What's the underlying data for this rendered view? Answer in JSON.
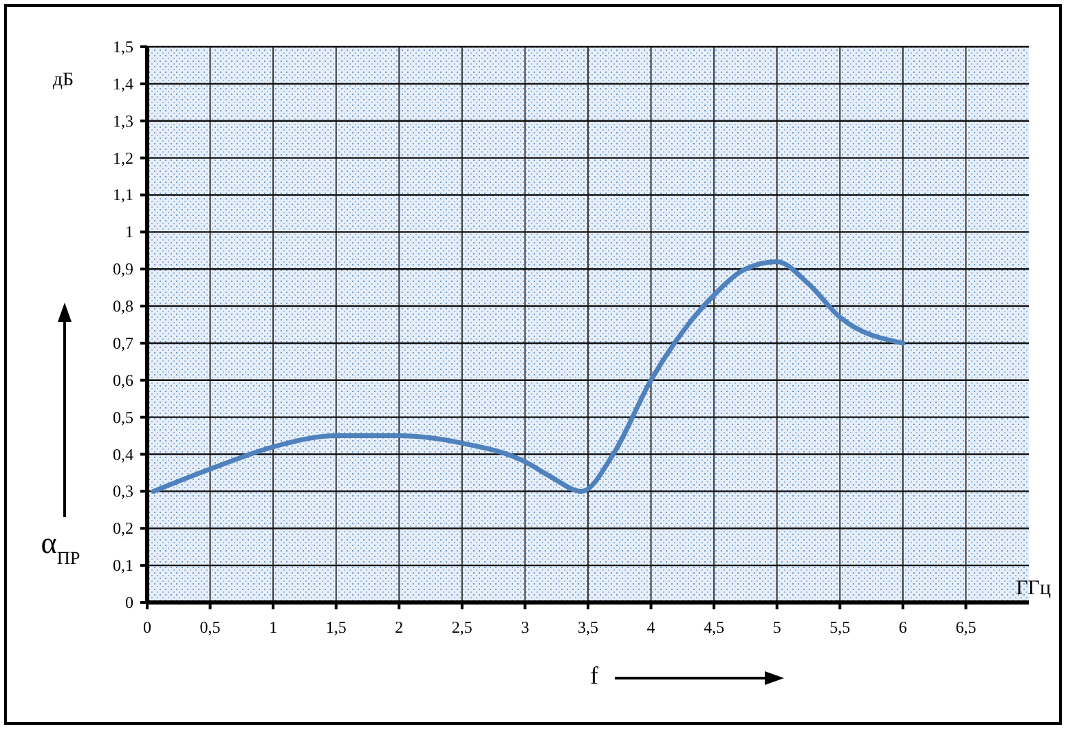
{
  "chart_data": {
    "type": "line",
    "xlabel": "f",
    "ylabel": "α$_{ПР}$",
    "annotations": [
      "дБ",
      "ГГц"
    ],
    "x": [
      0.05,
      0.5,
      1,
      1.5,
      2,
      2.5,
      3,
      3.2,
      3.45,
      3.7,
      4,
      4.25,
      4.5,
      4.75,
      5,
      5.25,
      5.5,
      6
    ],
    "series": [
      {
        "color": "#4f81bd",
        "values": [
          0.3,
          0.36,
          0.42,
          0.45,
          0.45,
          0.43,
          0.38,
          0.34,
          0.3,
          0.4,
          0.6,
          0.73,
          0.83,
          0.9,
          0.92,
          0.86,
          0.77,
          0.7
        ]
      }
    ],
    "xlim": [
      0,
      7
    ],
    "ylim": [
      0,
      1.5
    ],
    "xticks": [
      0,
      {
        "value": 0.5,
        "label": "0,5"
      },
      1,
      {
        "value": 1.5,
        "label": "1,5"
      },
      2,
      {
        "value": 2.5,
        "label": "2,5"
      },
      3,
      {
        "value": 3.5,
        "label": "3,5"
      },
      4,
      {
        "value": 4.5,
        "label": "4,5"
      },
      5,
      {
        "value": 5.5,
        "label": "5,5"
      },
      6,
      {
        "value": 6.5,
        "label": "6,5"
      }
    ],
    "yticks": [
      0,
      {
        "value": 0.1,
        "label": "0,1"
      },
      {
        "value": 0.2,
        "label": "0,2"
      },
      {
        "value": 0.3,
        "label": "0,3"
      },
      {
        "value": 0.4,
        "label": "0,4"
      },
      {
        "value": 0.5,
        "label": "0,5"
      },
      {
        "value": 0.6,
        "label": "0,6"
      },
      {
        "value": 0.7,
        "label": "0,7"
      },
      {
        "value": 0.8,
        "label": "0,8"
      },
      {
        "value": 0.9,
        "label": "0,9"
      },
      1,
      {
        "value": 1.1,
        "label": "1,1"
      },
      {
        "value": 1.2,
        "label": "1,2"
      },
      {
        "value": 1.3,
        "label": "1,3"
      },
      {
        "value": 1.4,
        "label": "1,4"
      },
      {
        "value": 1.5,
        "label": "1,5"
      }
    ],
    "grid": true,
    "marker": "none",
    "line_style": "solid"
  }
}
